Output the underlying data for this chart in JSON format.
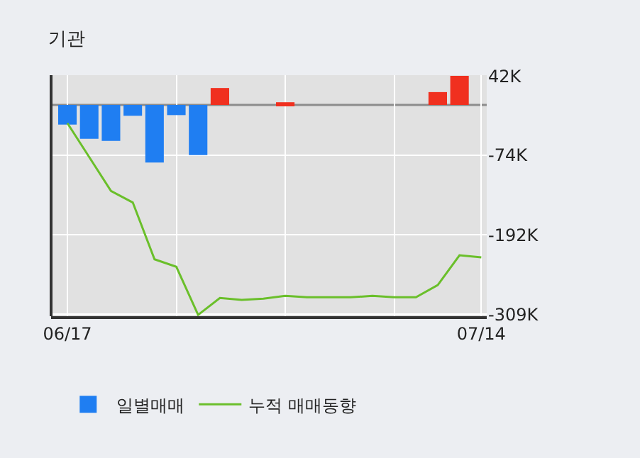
{
  "chart_data": {
    "type": "bar",
    "title": "기관",
    "categories": [
      "06/17",
      null,
      null,
      null,
      null,
      null,
      null,
      null,
      null,
      null,
      null,
      null,
      null,
      null,
      null,
      null,
      null,
      null,
      null,
      "07/14"
    ],
    "series": [
      {
        "name": "일별매매",
        "colors": [
          "#1f7ef2",
          "#1f7ef2",
          "#1f7ef2",
          "#1f7ef2",
          "#1f7ef2",
          "#1f7ef2",
          "#1f7ef2",
          "#f0301f",
          "#f0301f",
          "#f0301f",
          "#f0301f",
          "#f0301f",
          "#f0301f",
          "#f0301f",
          "#f0301f",
          "#f0301f",
          "#f0301f",
          "#f0301f",
          "#f0301f",
          "#f0301f"
        ],
        "values": [
          -29,
          -50,
          -53,
          -16,
          -85,
          -15,
          -74,
          25,
          0,
          0,
          4,
          0,
          0,
          0,
          0,
          0,
          0,
          19,
          43,
          null
        ]
      },
      {
        "name": "누적 매매동향",
        "type": "line",
        "color": "#6abf2a",
        "values": [
          -27,
          -77,
          -127,
          -144,
          -228,
          -239,
          -310,
          -285,
          -288,
          -286,
          -282,
          -284,
          -284,
          -284,
          -282,
          -284,
          -284,
          -266,
          -222,
          -225
        ]
      }
    ],
    "ylim": [
      -312,
      44
    ],
    "yticks": [
      {
        "value": 42,
        "label": "42K"
      },
      {
        "value": -74,
        "label": "-74K"
      },
      {
        "value": -192,
        "label": "-192K"
      },
      {
        "value": -309,
        "label": "-309K"
      }
    ],
    "ref_lines": [
      {
        "axis": "y",
        "value": 0,
        "color": "#8c8c8c"
      }
    ],
    "grid": true,
    "legend": "bottom"
  }
}
